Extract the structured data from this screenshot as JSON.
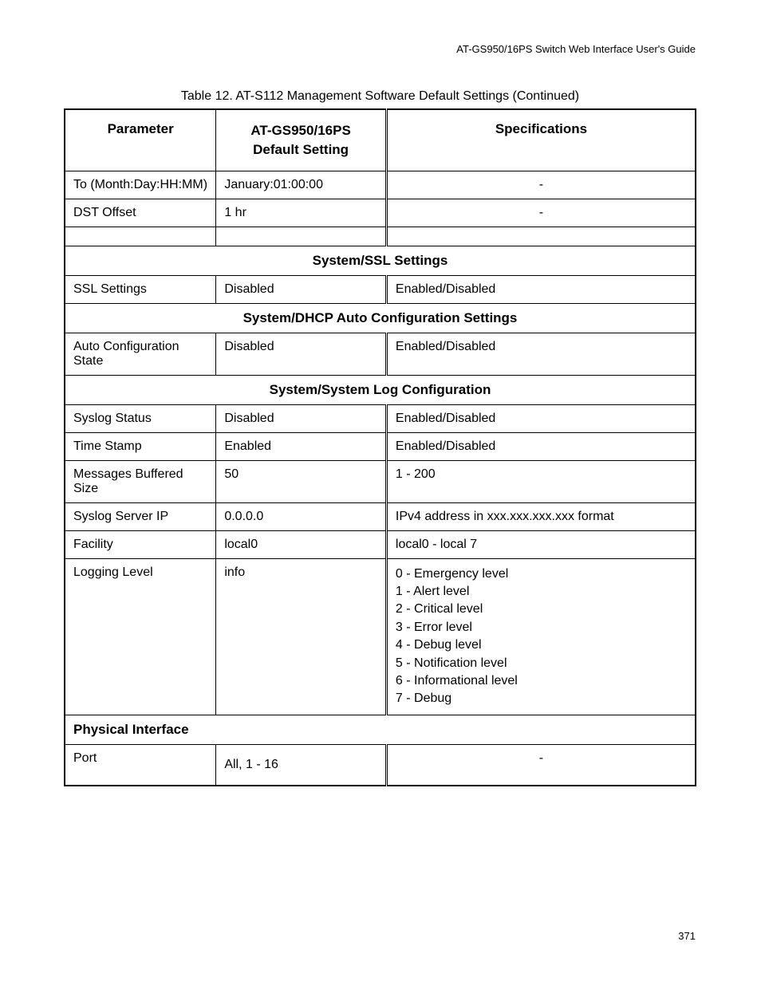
{
  "header": {
    "guide_title": "AT-GS950/16PS Switch Web Interface User's Guide"
  },
  "table": {
    "caption": "Table 12. AT-S112 Management Software Default Settings (Continued)",
    "columns": {
      "parameter": "Parameter",
      "default_setting": "AT-GS950/16PS\nDefault Setting",
      "specifications": "Specifications"
    },
    "rows": {
      "r1": {
        "param": "To (Month:Day:HH:MM)",
        "default": "January:01:00:00",
        "spec": "-"
      },
      "r2": {
        "param": "DST Offset",
        "default": "1 hr",
        "spec": "-"
      },
      "section_ssl": "System/SSL Settings",
      "r3": {
        "param": "SSL Settings",
        "default": "Disabled",
        "spec": "Enabled/Disabled"
      },
      "section_dhcp": "System/DHCP Auto Configuration Settings",
      "r4": {
        "param": "Auto Configuration State",
        "default": "Disabled",
        "spec": "Enabled/Disabled"
      },
      "section_syslog": "System/System Log Configuration",
      "r5": {
        "param": "Syslog Status",
        "default": "Disabled",
        "spec": "Enabled/Disabled"
      },
      "r6": {
        "param": "Time Stamp",
        "default": "Enabled",
        "spec": "Enabled/Disabled"
      },
      "r7": {
        "param": "Messages Buffered Size",
        "default": "50",
        "spec": "1 - 200"
      },
      "r8": {
        "param": "Syslog Server IP",
        "default": "0.0.0.0",
        "spec": "IPv4 address in xxx.xxx.xxx.xxx format"
      },
      "r9": {
        "param": "Facility",
        "default": "local0",
        "spec": "local0 - local 7"
      },
      "r10": {
        "param": "Logging Level",
        "default": "info",
        "spec": "0 - Emergency level\n1 - Alert level\n2 - Critical level\n3 - Error level\n4 - Debug level\n5 - Notification level\n6 - Informational level\n7 - Debug"
      },
      "section_physical": "Physical Interface",
      "r11": {
        "param": "Port",
        "default": "All, 1 - 16",
        "spec": "-"
      }
    }
  },
  "page_number": "371"
}
